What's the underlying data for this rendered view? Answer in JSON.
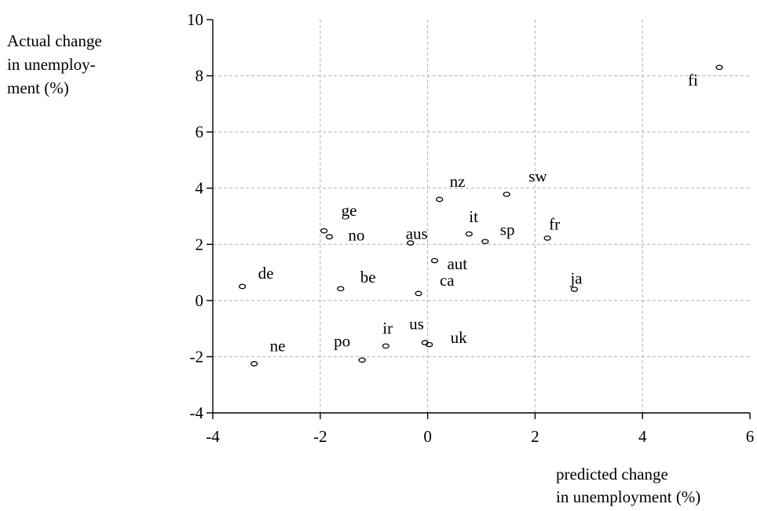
{
  "chart_data": {
    "type": "scatter",
    "ylabel_lines": [
      "Actual change",
      "in unemploy-",
      "ment (%)"
    ],
    "xlabel_lines": [
      "predicted change",
      "in unemployment (%)"
    ],
    "xlim": [
      -4,
      6
    ],
    "ylim": [
      -4,
      10
    ],
    "xticks": [
      "-4",
      "-2",
      "0",
      "2",
      "4",
      "6"
    ],
    "yticks": [
      "-4",
      "-2",
      "0",
      "2",
      "4",
      "6",
      "8",
      "10"
    ],
    "grid": true,
    "points": [
      {
        "label": "fi",
        "x": 5.43,
        "y": 8.3
      },
      {
        "label": "nz",
        "x": 0.22,
        "y": 3.6
      },
      {
        "label": "sw",
        "x": 1.47,
        "y": 3.78
      },
      {
        "label": "ge",
        "x": -1.93,
        "y": 2.48
      },
      {
        "label": "no",
        "x": -1.83,
        "y": 2.27
      },
      {
        "label": "aus",
        "x": -0.32,
        "y": 2.05
      },
      {
        "label": "it",
        "x": 0.77,
        "y": 2.37
      },
      {
        "label": "sp",
        "x": 1.07,
        "y": 2.1
      },
      {
        "label": "fr",
        "x": 2.23,
        "y": 2.22
      },
      {
        "label": "aut",
        "x": 0.13,
        "y": 1.42
      },
      {
        "label": "de",
        "x": -3.45,
        "y": 0.5
      },
      {
        "label": "be",
        "x": -1.62,
        "y": 0.42
      },
      {
        "label": "ca",
        "x": -0.17,
        "y": 0.25
      },
      {
        "label": "ja",
        "x": 2.73,
        "y": 0.4
      },
      {
        "label": "ir",
        "x": -0.78,
        "y": -1.62
      },
      {
        "label": "us",
        "x": -0.05,
        "y": -1.5
      },
      {
        "label": "uk",
        "x": 0.03,
        "y": -1.57
      },
      {
        "label": "po",
        "x": -1.22,
        "y": -2.12
      },
      {
        "label": "ne",
        "x": -3.23,
        "y": -2.25
      }
    ]
  }
}
